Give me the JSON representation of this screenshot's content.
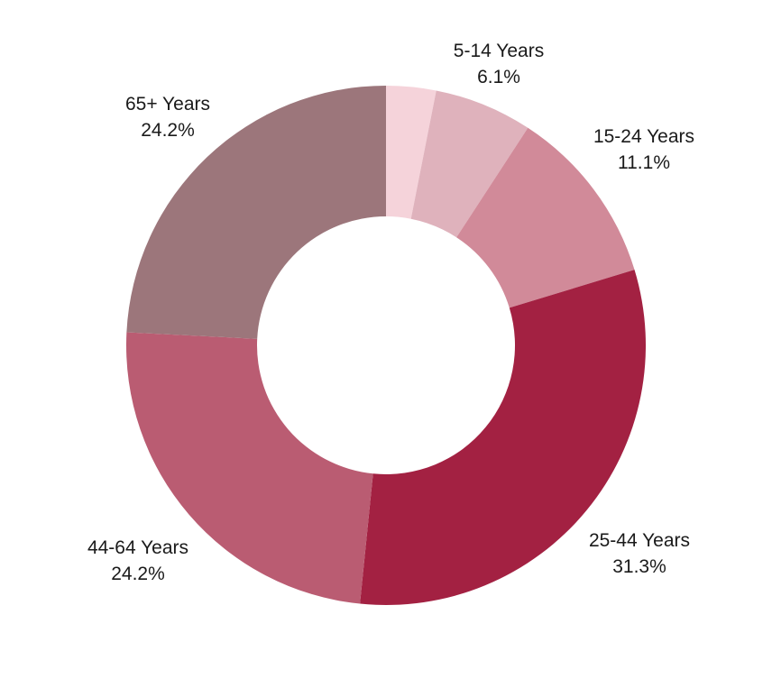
{
  "chart_data": {
    "type": "pie",
    "donut": true,
    "title": "",
    "start_angle_deg": 0,
    "direction": "clockwise",
    "slices": [
      {
        "name": "",
        "value": 3.1,
        "pct_label": "",
        "color": "#f5d3da"
      },
      {
        "name": "5-14 Years",
        "value": 6.1,
        "pct_label": "6.1%",
        "color": "#dfb2bc"
      },
      {
        "name": "15-24 Years",
        "value": 11.1,
        "pct_label": "11.1%",
        "color": "#d18a99"
      },
      {
        "name": "25-44 Years",
        "value": 31.3,
        "pct_label": "31.3%",
        "color": "#a32142"
      },
      {
        "name": "44-64 Years",
        "value": 24.2,
        "pct_label": "24.2%",
        "color": "#ba5c72"
      },
      {
        "name": "65+ Years",
        "value": 24.2,
        "pct_label": "24.2%",
        "color": "#9c767b"
      }
    ]
  }
}
